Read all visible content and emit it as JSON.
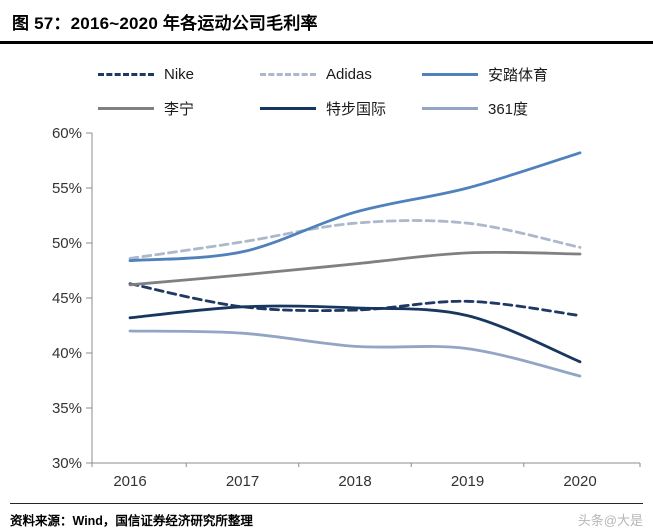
{
  "header": {
    "title": "图 57：2016~2020 年各运动公司毛利率"
  },
  "footer": {
    "source": "资料来源：Wind，国信证券经济研究所整理",
    "watermark": "头条@大是"
  },
  "chart_data": {
    "type": "line",
    "title": "2016~2020 年各运动公司毛利率",
    "x": [
      "2016",
      "2017",
      "2018",
      "2019",
      "2020"
    ],
    "ylim": [
      30,
      60
    ],
    "yticks": [
      30,
      35,
      40,
      45,
      50,
      55,
      60
    ],
    "ytick_suffix": "%",
    "grid": false,
    "legend_position": "top",
    "series": [
      {
        "name": "Nike",
        "color": "#1F3864",
        "dash": true,
        "values": [
          46.3,
          44.2,
          43.9,
          44.7,
          43.4
        ]
      },
      {
        "name": "Adidas",
        "color": "#ADB9CA",
        "dash": true,
        "values": [
          48.6,
          50.1,
          51.8,
          51.8,
          49.6
        ]
      },
      {
        "name": "安踏体育",
        "color": "#4F81BD",
        "dash": false,
        "values": [
          48.4,
          49.2,
          52.8,
          55.0,
          58.2
        ]
      },
      {
        "name": "李宁",
        "color": "#808080",
        "dash": false,
        "values": [
          46.2,
          47.1,
          48.1,
          49.1,
          49.0
        ]
      },
      {
        "name": "特步国际",
        "color": "#17375E",
        "dash": false,
        "values": [
          43.2,
          44.2,
          44.1,
          43.4,
          39.2
        ]
      },
      {
        "name": "361度",
        "color": "#93A5C4",
        "dash": false,
        "values": [
          42.0,
          41.8,
          40.6,
          40.4,
          37.9
        ]
      }
    ]
  }
}
